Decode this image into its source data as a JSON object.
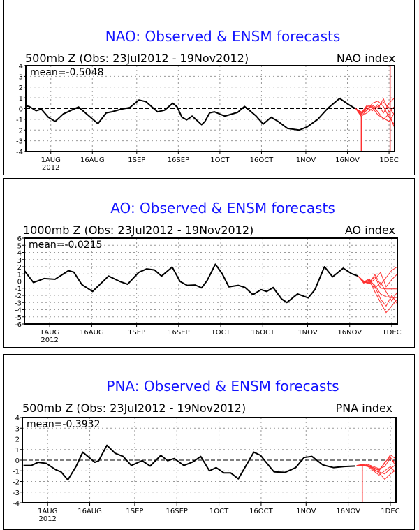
{
  "chart_data": [
    {
      "type": "line",
      "title": "NAO: Observed & ENSM forecasts",
      "subtitle_left": "500mb Z (Obs: 23Jul2012 - 19Nov2012)",
      "subtitle_right": "NAO index",
      "mean_label": "mean=-0.5048",
      "xlabel": "",
      "ylabel": "",
      "x_unit": "days since 23Jul2012",
      "xlim": [
        0,
        133
      ],
      "ylim": [
        -4,
        4
      ],
      "yticks": [
        -4,
        -3,
        -2,
        -1,
        0,
        1,
        2,
        3,
        4
      ],
      "ytick_labels": [
        "-4",
        "-3",
        "-2",
        "-1",
        "0",
        "1",
        "2",
        "3",
        "4"
      ],
      "xticks": [
        9,
        24,
        40,
        55,
        70,
        85,
        101,
        116,
        131
      ],
      "xtick_labels": [
        "1AUG",
        "16AUG",
        "1SEP",
        "16SEP",
        "1OCT",
        "16OCT",
        "1NOV",
        "16NOV",
        "1DEC"
      ],
      "year_label": "2012",
      "grid": true,
      "colors": {
        "observed": "#000000",
        "forecast": "#ff3030",
        "title": "#1414ff"
      },
      "observed": {
        "x": [
          0,
          1.2,
          3.7,
          5.6,
          8.1,
          10.6,
          13.5,
          16,
          19,
          22.4,
          26,
          29,
          31,
          34.5,
          37.5,
          40.8,
          43.3,
          47.5,
          50,
          53,
          54.6,
          56.3,
          58,
          60,
          61.3,
          63.4,
          64.6,
          66.3,
          68,
          71.8,
          76.4,
          78.9,
          80.6,
          83.1,
          85.6,
          88.5,
          91,
          94.4,
          98.6,
          101.5,
          105.3,
          109,
          113.2,
          116.6,
          118.9
        ],
        "y": [
          0.25,
          0.2,
          -0.2,
          -0.05,
          -0.8,
          -1.2,
          -0.5,
          -0.2,
          0.15,
          -0.6,
          -1.4,
          -0.4,
          -0.3,
          -0.05,
          0.1,
          0.8,
          0.65,
          -0.3,
          -0.15,
          0.5,
          0.15,
          -0.8,
          -1.05,
          -0.7,
          -1.0,
          -1.5,
          -1.2,
          -0.4,
          -0.3,
          -0.7,
          -0.35,
          0.2,
          -0.15,
          -0.7,
          -1.45,
          -0.8,
          -1.2,
          -1.85,
          -2.0,
          -1.7,
          -1.0,
          0.05,
          0.95,
          0.35,
          0
        ]
      },
      "forecast_x": [
        119,
        121,
        123,
        125,
        127,
        129,
        131,
        133
      ],
      "forecast_members": [
        [
          0,
          -0.75,
          -0.1,
          0.3,
          0.0,
          0.9,
          -0.3,
          0.2
        ],
        [
          0,
          -0.5,
          0.2,
          0.1,
          -0.6,
          -0.9,
          -1.2,
          -0.4
        ],
        [
          0,
          -0.3,
          -0.2,
          0.5,
          0.7,
          0.2,
          -0.8,
          -1.5
        ],
        [
          0,
          -0.6,
          0.1,
          -0.2,
          0.4,
          -0.4,
          0.5,
          1.0
        ],
        [
          0,
          -0.4,
          0.3,
          0.2,
          -0.3,
          -1.0,
          -0.5,
          -1.8
        ],
        [
          0,
          -0.7,
          -0.4,
          0.0,
          0.2,
          0.6,
          0.1,
          -0.6
        ]
      ],
      "forecast_spikes": [
        {
          "x": 121,
          "y_from": -0.75,
          "y_to": -4
        },
        {
          "x": 131.4,
          "y_from": 4,
          "y_to": -4
        }
      ]
    },
    {
      "type": "line",
      "title": "AO: Observed & ENSM forecasts",
      "subtitle_left": "1000mb Z (Obs: 23Jul2012 - 19Nov2012)",
      "subtitle_right": "AO index",
      "mean_label": "mean=-0.0215",
      "xlabel": "",
      "ylabel": "",
      "x_unit": "days since 23Jul2012",
      "xlim": [
        0,
        133
      ],
      "ylim": [
        -6,
        6
      ],
      "yticks": [
        -6,
        -5,
        -4,
        -3,
        -2,
        -1,
        0,
        1,
        2,
        3,
        4,
        5,
        6
      ],
      "ytick_labels": [
        "-6",
        "-5",
        "-4",
        "-3",
        "-2",
        "-1",
        "0",
        "1",
        "2",
        "3",
        "4",
        "5",
        "6"
      ],
      "xticks": [
        9,
        24,
        40,
        55,
        70,
        85,
        101,
        116,
        131
      ],
      "xtick_labels": [
        "1AUG",
        "16AUG",
        "1SEP",
        "16SEP",
        "1OCT",
        "16OCT",
        "1NOV",
        "16NOV",
        "1DEC"
      ],
      "year_label": "2012",
      "grid": true,
      "colors": {
        "observed": "#000000",
        "forecast": "#ff3030",
        "title": "#1414ff"
      },
      "observed": {
        "x": [
          0.1,
          3.2,
          7,
          10.9,
          15.7,
          17.6,
          20.5,
          24.3,
          30,
          34,
          36.8,
          40.7,
          43.6,
          46.4,
          48.9,
          52.7,
          55.5,
          58,
          60.9,
          63.2,
          65.2,
          68.1,
          70.5,
          72.9,
          76.3,
          78.7,
          81.5,
          84.4,
          86.4,
          88.7,
          91.7,
          93.6,
          97.4,
          101.2,
          103.6,
          107,
          109.9,
          113.7,
          116.6,
          119
        ],
        "y": [
          1.4,
          -0.2,
          0.35,
          0.25,
          1.45,
          1.25,
          -0.5,
          -1.45,
          0.7,
          -0.05,
          -0.45,
          1.2,
          1.7,
          1.55,
          0.7,
          1.95,
          -0.05,
          -0.6,
          -0.55,
          -0.95,
          0.1,
          2.35,
          1.05,
          -0.8,
          -0.6,
          -0.9,
          -1.9,
          -1.2,
          -1.45,
          -0.9,
          -2.5,
          -3.0,
          -1.8,
          -2.35,
          -1.2,
          2.0,
          0.6,
          1.8,
          1.05,
          0.7
        ]
      },
      "forecast_x": [
        119,
        121,
        123,
        125,
        127,
        129,
        131,
        133
      ],
      "forecast_members": [
        [
          0.7,
          -0.2,
          -0.1,
          0.6,
          -1.0,
          -1.1,
          -1.1,
          -1.1
        ],
        [
          0.7,
          -0.1,
          0.3,
          -0.8,
          -2.5,
          -3.5,
          -2.0,
          -3.2
        ],
        [
          0.7,
          0.0,
          -0.3,
          0.9,
          -0.5,
          0.5,
          1.5,
          2.0
        ],
        [
          0.7,
          -0.3,
          0.2,
          -1.5,
          -3.0,
          -4.4,
          -3.5,
          -2.5
        ],
        [
          0.7,
          -0.1,
          -0.4,
          0.3,
          1.2,
          -0.8,
          0.2,
          1.0
        ],
        [
          0.7,
          -0.2,
          0.1,
          -0.6,
          -1.8,
          -2.2,
          -2.3,
          -2.3
        ],
        [
          0.7,
          0.0,
          -0.2,
          -1.0,
          -0.2,
          -1.5,
          -2.8,
          -1.5
        ]
      ],
      "forecast_spikes": []
    },
    {
      "type": "line",
      "title": "PNA: Observed & ENSM forecasts",
      "subtitle_left": "500mb Z (Obs: 23Jul2012 - 19Nov2012)",
      "subtitle_right": "PNA index",
      "mean_label": "mean=-0.3932",
      "xlabel": "",
      "ylabel": "",
      "x_unit": "days since 23Jul2012",
      "xlim": [
        0,
        133
      ],
      "ylim": [
        -4,
        4
      ],
      "yticks": [
        -4,
        -3,
        -2,
        -1,
        0,
        1,
        2,
        3,
        4
      ],
      "ytick_labels": [
        "-4",
        "-3",
        "-2",
        "-1",
        "0",
        "1",
        "2",
        "3",
        "4"
      ],
      "xticks": [
        9,
        24,
        40,
        55,
        70,
        85,
        101,
        116,
        131
      ],
      "xtick_labels": [
        "1AUG",
        "16AUG",
        "1SEP",
        "16SEP",
        "1OCT",
        "16OCT",
        "1NOV",
        "16NOV",
        "1DEC"
      ],
      "year_label": "2012",
      "grid": true,
      "colors": {
        "observed": "#000000",
        "forecast": "#ff3030",
        "title": "#1414ff"
      },
      "observed": {
        "x": [
          0.4,
          3.2,
          5.6,
          8.5,
          11.9,
          13.8,
          16.2,
          19.1,
          21.5,
          25.8,
          27.2,
          30.1,
          33,
          35.9,
          38.8,
          42.6,
          45.5,
          49.3,
          51.7,
          54.1,
          57.5,
          60.8,
          63.5,
          66.6,
          69,
          71.8,
          74.2,
          76.9,
          82.4,
          84.8,
          87.7,
          89.6,
          93.5,
          97.3,
          100.3,
          103.1,
          107,
          110.8,
          114.6,
          118.5
        ],
        "y": [
          -0.5,
          -0.5,
          -0.2,
          -0.3,
          -0.9,
          -1.1,
          -1.85,
          -0.6,
          0.75,
          -0.2,
          -0.05,
          1.4,
          0.65,
          0.35,
          -0.5,
          -0.05,
          -0.55,
          0.45,
          -0.05,
          0.15,
          -0.5,
          -0.15,
          0.35,
          -1.0,
          -0.7,
          -1.2,
          -1.2,
          -1.75,
          0.75,
          0.45,
          -0.5,
          -1.1,
          -1.15,
          -0.7,
          0.25,
          0.35,
          -0.45,
          -0.7,
          -0.6,
          -0.55
        ]
      },
      "forecast_x": [
        119,
        121,
        123,
        125,
        127,
        129,
        131,
        133
      ],
      "forecast_members": [
        [
          -0.5,
          -0.4,
          -0.5,
          -0.8,
          -1.2,
          -1.8,
          -1.3,
          -0.9
        ],
        [
          -0.5,
          -0.5,
          -0.5,
          -0.7,
          -0.9,
          -0.3,
          0.5,
          0.1
        ],
        [
          -0.5,
          -0.4,
          -0.6,
          -1.0,
          -1.4,
          -1.0,
          -0.6,
          -1.2
        ],
        [
          -0.5,
          -0.5,
          -0.4,
          -0.6,
          -0.8,
          -0.6,
          0.2,
          -0.3
        ],
        [
          -0.5,
          -0.4,
          -0.5,
          -0.9,
          -1.1,
          -1.3,
          -0.8,
          -0.4
        ],
        [
          -0.5,
          -0.5,
          -0.6,
          -0.7,
          -1.0,
          -0.2,
          0.3,
          -0.6
        ]
      ],
      "forecast_spikes": [
        {
          "x": 121,
          "y_from": -0.5,
          "y_to": -4
        }
      ]
    }
  ]
}
